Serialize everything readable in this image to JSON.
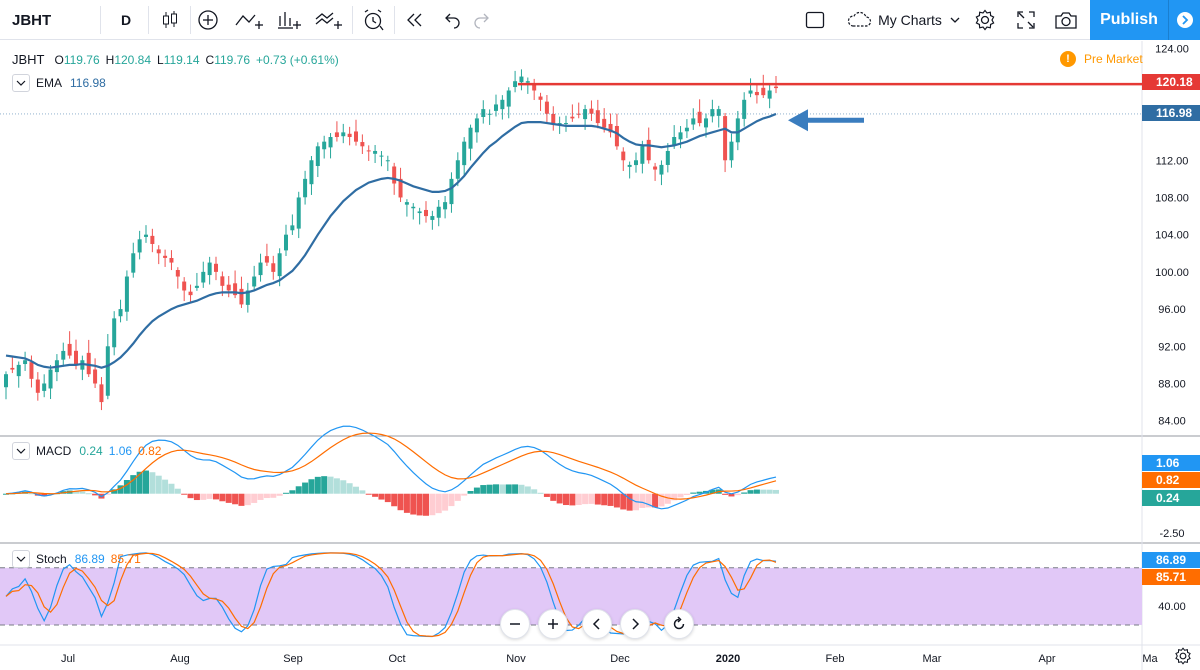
{
  "toolbar": {
    "symbol": "JBHT",
    "interval": "D",
    "my_charts": "My Charts",
    "publish": "Publish",
    "icons": [
      "candles-icon",
      "add-indicator-icon",
      "compare-icon",
      "bar-style-icon",
      "indicators-icon",
      "alert-icon",
      "replay-icon",
      "undo-icon",
      "redo-icon",
      "layout-icon",
      "cloud-icon",
      "settings-icon",
      "fullscreen-icon",
      "snapshot-icon",
      "chevron-down-icon"
    ]
  },
  "legend": {
    "symbol": "JBHT",
    "open_k": "O",
    "open": "119.76",
    "high_k": "H",
    "high": "120.84",
    "low_k": "L",
    "low": "119.14",
    "close_k": "C",
    "close": "119.76",
    "change": "+0.73 (+0.61%)",
    "ema_name": "EMA",
    "ema_value": "116.98",
    "macd_name": "MACD",
    "macd_v1": "0.24",
    "macd_v2": "1.06",
    "macd_v3": "0.82",
    "stoch_name": "Stoch",
    "stoch_v1": "86.89",
    "stoch_v2": "85.71"
  },
  "pre_market": "Pre Market",
  "price_tags": {
    "resistance": "120.18",
    "ema": "116.98"
  },
  "macd_tags": [
    "1.06",
    "0.82",
    "0.24"
  ],
  "stoch_tags": [
    "86.89",
    "85.71"
  ],
  "colors": {
    "up": "#26a69a",
    "down": "#ef5350",
    "ema": "#2f6da3",
    "macd_line": "#2196f3",
    "signal_line": "#ff6d00",
    "hist_up_strong": "#26a69a",
    "hist_up_weak": "#b2dfdb",
    "hist_down_strong": "#ef5350",
    "hist_down_weak": "#ffcdd2",
    "stoch_band": "#e1c8f7",
    "resistance": "#e53935",
    "arrow": "#3a7dbf"
  },
  "chart_data": {
    "type": "candlestick",
    "symbol": "JBHT",
    "interval": "D",
    "x_labels": [
      "Jul",
      "Aug",
      "Sep",
      "Oct",
      "Nov",
      "Dec",
      "2020",
      "Feb",
      "Mar",
      "Apr",
      "Ma"
    ],
    "price_axis": {
      "ticks": [
        "124.00",
        "120.18",
        "116.98",
        "112.00",
        "108.00",
        "104.00",
        "100.00",
        "96.00",
        "92.00",
        "88.00",
        "84.00"
      ],
      "ylim": [
        83,
        124.5
      ]
    },
    "closes": [
      89,
      89.5,
      90,
      90.5,
      88.5,
      87,
      88,
      89.5,
      90.5,
      91.5,
      91,
      90,
      90.5,
      89,
      88,
      86,
      92,
      95,
      96,
      99.5,
      102,
      103.5,
      104,
      103,
      102,
      101.5,
      101,
      99.5,
      98,
      97.5,
      98.5,
      100,
      101,
      100,
      98.5,
      98,
      97.5,
      96.5,
      98,
      99.5,
      101,
      101,
      100,
      102,
      104,
      105,
      108,
      110,
      112,
      113.5,
      114,
      114.5,
      114.5,
      115,
      114.5,
      114,
      113.5,
      113,
      113,
      112.5,
      112,
      109.5,
      108,
      107.5,
      107,
      106.5,
      106,
      106,
      107,
      107.5,
      110,
      112,
      114,
      115.5,
      116.5,
      117.5,
      117,
      118,
      118.5,
      119.5,
      120.5,
      121,
      120.5,
      119.5,
      118.5,
      117,
      116,
      116,
      116,
      116.5,
      117,
      117.5,
      117,
      116,
      115.5,
      115,
      113.5,
      112,
      111.5,
      112,
      113.5,
      112,
      111,
      111.5,
      113,
      114.5,
      115,
      115.5,
      116.5,
      116,
      116.5,
      117.5,
      117.5,
      112,
      114,
      116.5,
      118.5,
      119.5,
      119,
      119,
      119.5,
      119.76
    ],
    "ema": [
      91,
      90.9,
      90.8,
      90.7,
      90.4,
      90,
      89.8,
      89.7,
      89.8,
      89.9,
      90,
      90,
      90.1,
      90,
      89.9,
      89.7,
      89.9,
      90.3,
      90.8,
      91.5,
      92.3,
      93.2,
      94,
      94.7,
      95.2,
      95.6,
      96,
      96.3,
      96.5,
      96.7,
      96.9,
      97.2,
      97.5,
      97.7,
      97.8,
      97.8,
      97.8,
      97.7,
      97.8,
      98,
      98.3,
      98.6,
      98.8,
      99.1,
      99.6,
      100.1,
      100.9,
      101.8,
      102.9,
      104,
      105,
      106,
      106.8,
      107.6,
      108.2,
      108.8,
      109.2,
      109.6,
      109.8,
      110,
      110.1,
      110,
      109.8,
      109.5,
      109.2,
      109,
      108.8,
      108.6,
      108.6,
      108.7,
      109,
      109.6,
      110.3,
      111.2,
      112,
      112.8,
      113.5,
      114,
      114.6,
      115.1,
      115.6,
      116,
      116.1,
      116.1,
      116.1,
      116,
      115.9,
      115.8,
      115.7,
      115.7,
      115.7,
      115.7,
      115.7,
      115.6,
      115.4,
      115.2,
      114.9,
      114.4,
      114,
      113.7,
      113.6,
      113.6,
      113.5,
      113.4,
      113.5,
      113.6,
      113.8,
      114,
      114.3,
      114.6,
      114.8,
      115,
      115.2,
      115.4,
      115,
      115,
      115.4,
      115.8,
      116.2,
      116.5,
      116.7,
      116.98
    ],
    "resistance": 120.18,
    "macd": {
      "ylim": [
        -3.0,
        3.6
      ],
      "ticks": [
        "1.06",
        "0.82",
        "0.24",
        "-2.50"
      ],
      "macd_line_final": 1.06,
      "signal_final": 0.82,
      "histogram_final": 0.24
    },
    "stoch": {
      "ylim": [
        0,
        105
      ],
      "ticks": [
        "86.89",
        "85.71",
        "40.00"
      ],
      "band": [
        20,
        80
      ],
      "k_final": 86.89,
      "d_final": 85.71
    }
  }
}
